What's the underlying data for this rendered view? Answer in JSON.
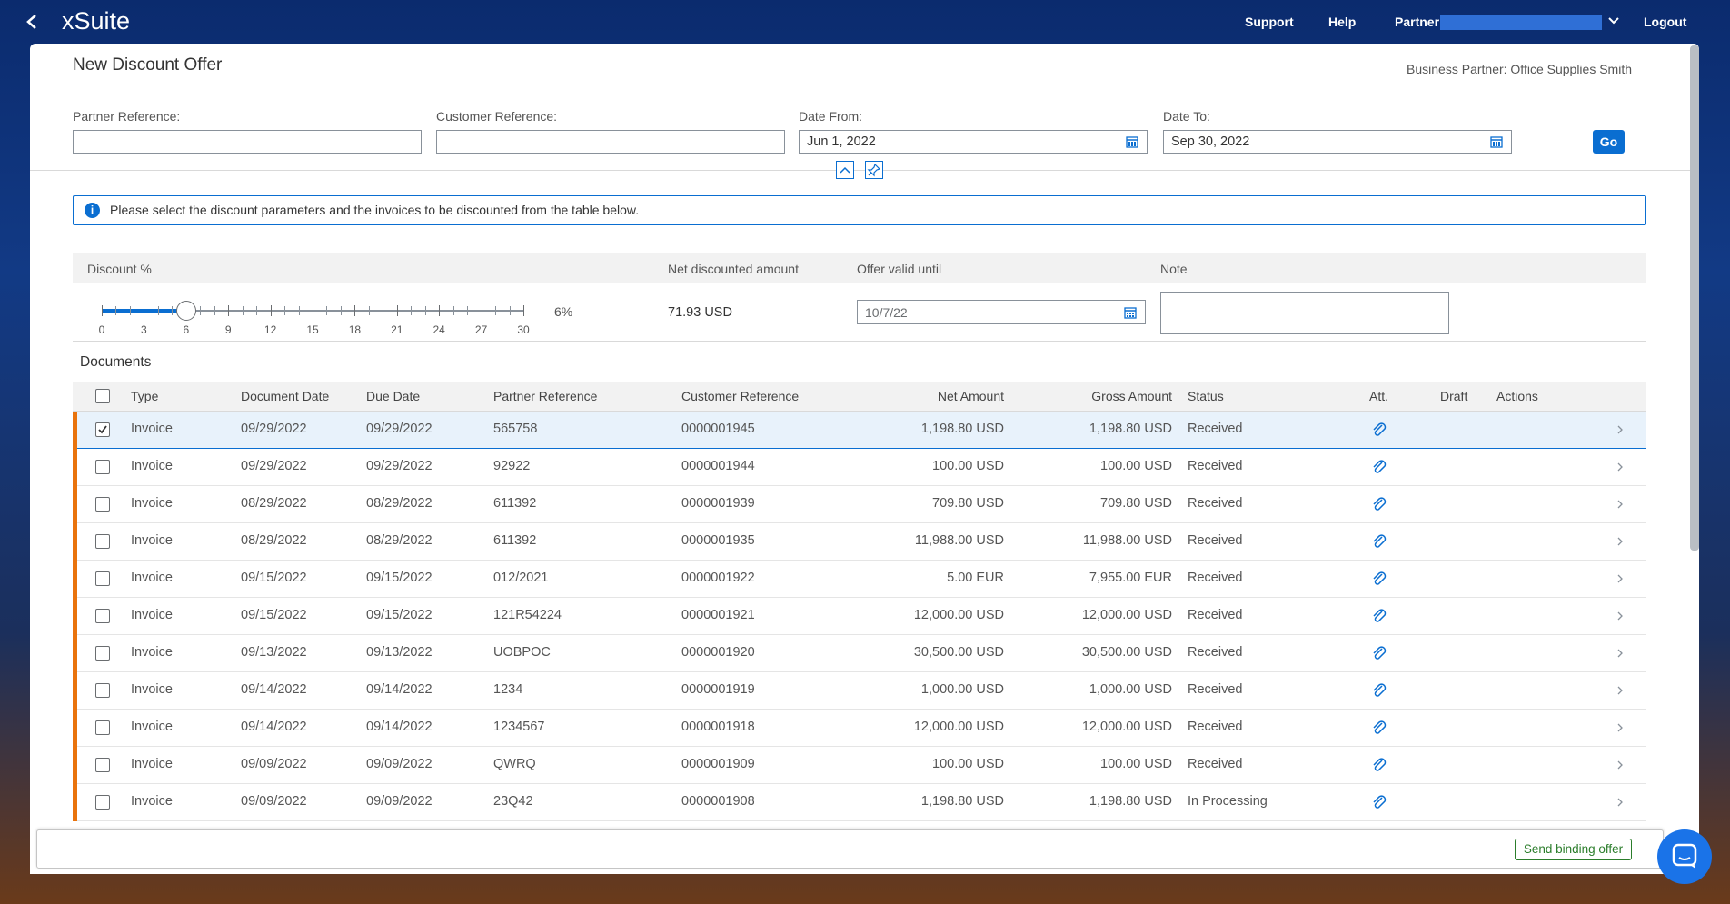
{
  "header": {
    "app_name": "xSuite",
    "support": "Support",
    "help": "Help",
    "partner": "Partner",
    "logout": "Logout"
  },
  "page": {
    "title": "New Discount Offer",
    "business_partner": "Business Partner: Office Supplies Smith"
  },
  "filters": [
    {
      "label": "Partner Reference:"
    },
    {
      "label": "Customer Reference:"
    },
    {
      "label": "Date From:",
      "value": "Jun 1, 2022"
    },
    {
      "label": "Date To:",
      "value": "Sep 30, 2022"
    }
  ],
  "go_button": "Go",
  "info_message": "Please select the discount parameters and the invoices to be discounted from the table below.",
  "discount": {
    "headers": [
      "Discount %",
      "Net discounted amount",
      "Offer valid until",
      "Note"
    ],
    "slider": {
      "ticks": [
        0,
        3,
        6,
        9,
        12,
        15,
        18,
        21,
        24,
        27,
        30
      ],
      "value": 6,
      "value_label": "6%"
    },
    "net_amount": "71.93 USD",
    "valid_until": "10/7/22"
  },
  "documents": {
    "title": "Documents",
    "columns": [
      "Type",
      "Document Date",
      "Due Date",
      "Partner Reference",
      "Customer Reference",
      "Net Amount",
      "Gross Amount",
      "Status",
      "Att.",
      "Draft",
      "Actions"
    ],
    "rows": [
      {
        "cells": [
          "Invoice",
          "09/29/2022",
          "09/29/2022",
          "565758",
          "0000001945",
          "1,198.80 USD",
          "1,198.80 USD",
          "Received"
        ],
        "checked": true
      },
      {
        "cells": [
          "Invoice",
          "09/29/2022",
          "09/29/2022",
          "92922",
          "0000001944",
          "100.00 USD",
          "100.00 USD",
          "Received"
        ]
      },
      {
        "cells": [
          "Invoice",
          "08/29/2022",
          "08/29/2022",
          "611392",
          "0000001939",
          "709.80 USD",
          "709.80 USD",
          "Received"
        ]
      },
      {
        "cells": [
          "Invoice",
          "08/29/2022",
          "08/29/2022",
          "611392",
          "0000001935",
          "11,988.00 USD",
          "11,988.00 USD",
          "Received"
        ]
      },
      {
        "cells": [
          "Invoice",
          "09/15/2022",
          "09/15/2022",
          "012/2021",
          "0000001922",
          "5.00 EUR",
          "7,955.00 EUR",
          "Received"
        ]
      },
      {
        "cells": [
          "Invoice",
          "09/15/2022",
          "09/15/2022",
          "121R54224",
          "0000001921",
          "12,000.00 USD",
          "12,000.00 USD",
          "Received"
        ]
      },
      {
        "cells": [
          "Invoice",
          "09/13/2022",
          "09/13/2022",
          "UOBPOC",
          "0000001920",
          "30,500.00 USD",
          "30,500.00 USD",
          "Received"
        ]
      },
      {
        "cells": [
          "Invoice",
          "09/14/2022",
          "09/14/2022",
          "1234",
          "0000001919",
          "1,000.00 USD",
          "1,000.00 USD",
          "Received"
        ]
      },
      {
        "cells": [
          "Invoice",
          "09/14/2022",
          "09/14/2022",
          "1234567",
          "0000001918",
          "12,000.00 USD",
          "12,000.00 USD",
          "Received"
        ]
      },
      {
        "cells": [
          "Invoice",
          "09/09/2022",
          "09/09/2022",
          "QWRQ",
          "0000001909",
          "100.00 USD",
          "100.00 USD",
          "Received"
        ]
      },
      {
        "cells": [
          "Invoice",
          "09/09/2022",
          "09/09/2022",
          "23Q42",
          "0000001908",
          "1,198.80 USD",
          "1,198.80 USD",
          "In Processing"
        ]
      }
    ]
  },
  "footer": {
    "button": "Send binding offer"
  }
}
